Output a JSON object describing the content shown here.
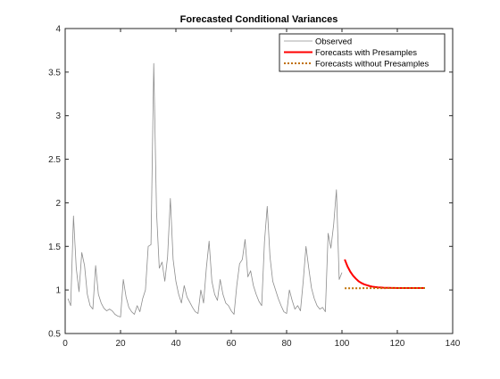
{
  "chart_data": {
    "type": "line",
    "title": "Forecasted Conditional Variances",
    "xlabel": "",
    "ylabel": "",
    "xlim": [
      0,
      140
    ],
    "ylim": [
      0.5,
      4
    ],
    "xticks": [
      0,
      20,
      40,
      60,
      80,
      100,
      120,
      140
    ],
    "yticks": [
      0.5,
      1,
      1.5,
      2,
      2.5,
      3,
      3.5,
      4
    ],
    "xtick_labels": [
      "0",
      "20",
      "40",
      "60",
      "80",
      "100",
      "120",
      "140"
    ],
    "ytick_labels": [
      "0.5",
      "1",
      "1.5",
      "2",
      "2.5",
      "3",
      "3.5",
      "4"
    ],
    "grid": false,
    "legend_position": "top-right",
    "series": [
      {
        "name": "Observed",
        "color": "#8c8c8c",
        "style": "solid",
        "x": [
          1,
          2,
          3,
          4,
          5,
          6,
          7,
          8,
          9,
          10,
          11,
          12,
          13,
          14,
          15,
          16,
          17,
          18,
          19,
          20,
          21,
          22,
          23,
          24,
          25,
          26,
          27,
          28,
          29,
          30,
          31,
          32,
          33,
          34,
          35,
          36,
          37,
          38,
          39,
          40,
          41,
          42,
          43,
          44,
          45,
          46,
          47,
          48,
          49,
          50,
          51,
          52,
          53,
          54,
          55,
          56,
          57,
          58,
          59,
          60,
          61,
          62,
          63,
          64,
          65,
          66,
          67,
          68,
          69,
          70,
          71,
          72,
          73,
          74,
          75,
          76,
          77,
          78,
          79,
          80,
          81,
          82,
          83,
          84,
          85,
          86,
          87,
          88,
          89,
          90,
          91,
          92,
          93,
          94,
          95,
          96,
          97,
          98,
          99,
          100
        ],
        "y": [
          0.9,
          0.82,
          1.85,
          1.25,
          0.98,
          1.43,
          1.28,
          0.95,
          0.82,
          0.78,
          1.28,
          0.95,
          0.85,
          0.79,
          0.76,
          0.78,
          0.76,
          0.72,
          0.7,
          0.69,
          1.12,
          0.92,
          0.8,
          0.75,
          0.72,
          0.82,
          0.75,
          0.9,
          1.0,
          1.5,
          1.52,
          3.6,
          1.9,
          1.25,
          1.32,
          1.1,
          1.38,
          2.05,
          1.35,
          1.1,
          0.95,
          0.85,
          1.05,
          0.92,
          0.86,
          0.8,
          0.75,
          0.73,
          1.0,
          0.85,
          1.25,
          1.56,
          1.1,
          0.95,
          0.88,
          1.12,
          0.95,
          0.85,
          0.82,
          0.76,
          0.72,
          1.05,
          1.3,
          1.35,
          1.58,
          1.15,
          1.22,
          1.05,
          0.95,
          0.87,
          0.82,
          1.55,
          1.96,
          1.38,
          1.1,
          1.0,
          0.9,
          0.82,
          0.75,
          0.73,
          1.0,
          0.88,
          0.78,
          0.82,
          0.76,
          1.1,
          1.5,
          1.25,
          1.02,
          0.9,
          0.82,
          0.78,
          0.8,
          0.75,
          1.65,
          1.48,
          1.75,
          2.15,
          1.12,
          1.2
        ]
      },
      {
        "name": "Forecasts with Presamples",
        "color": "#ff0000",
        "style": "solid",
        "x": [
          101,
          102,
          103,
          104,
          105,
          106,
          107,
          108,
          109,
          110,
          111,
          112,
          113,
          114,
          115,
          116,
          117,
          118,
          119,
          120,
          121,
          122,
          123,
          124,
          125,
          126,
          127,
          128,
          129,
          130
        ],
        "y": [
          1.35,
          1.27,
          1.21,
          1.165,
          1.13,
          1.1,
          1.08,
          1.065,
          1.055,
          1.045,
          1.038,
          1.033,
          1.03,
          1.028,
          1.026,
          1.025,
          1.024,
          1.023,
          1.023,
          1.022,
          1.022,
          1.022,
          1.022,
          1.022,
          1.022,
          1.022,
          1.022,
          1.022,
          1.022,
          1.022
        ]
      },
      {
        "name": "Forecasts without Presamples",
        "color": "#c07000",
        "style": "dotted",
        "x": [
          101,
          102,
          103,
          104,
          105,
          106,
          107,
          108,
          109,
          110,
          111,
          112,
          113,
          114,
          115,
          116,
          117,
          118,
          119,
          120,
          121,
          122,
          123,
          124,
          125,
          126,
          127,
          128,
          129,
          130
        ],
        "y": [
          1.02,
          1.02,
          1.02,
          1.02,
          1.02,
          1.02,
          1.02,
          1.021,
          1.021,
          1.021,
          1.021,
          1.021,
          1.021,
          1.021,
          1.021,
          1.021,
          1.022,
          1.022,
          1.022,
          1.022,
          1.022,
          1.022,
          1.022,
          1.022,
          1.022,
          1.022,
          1.022,
          1.022,
          1.022,
          1.022
        ]
      }
    ]
  }
}
